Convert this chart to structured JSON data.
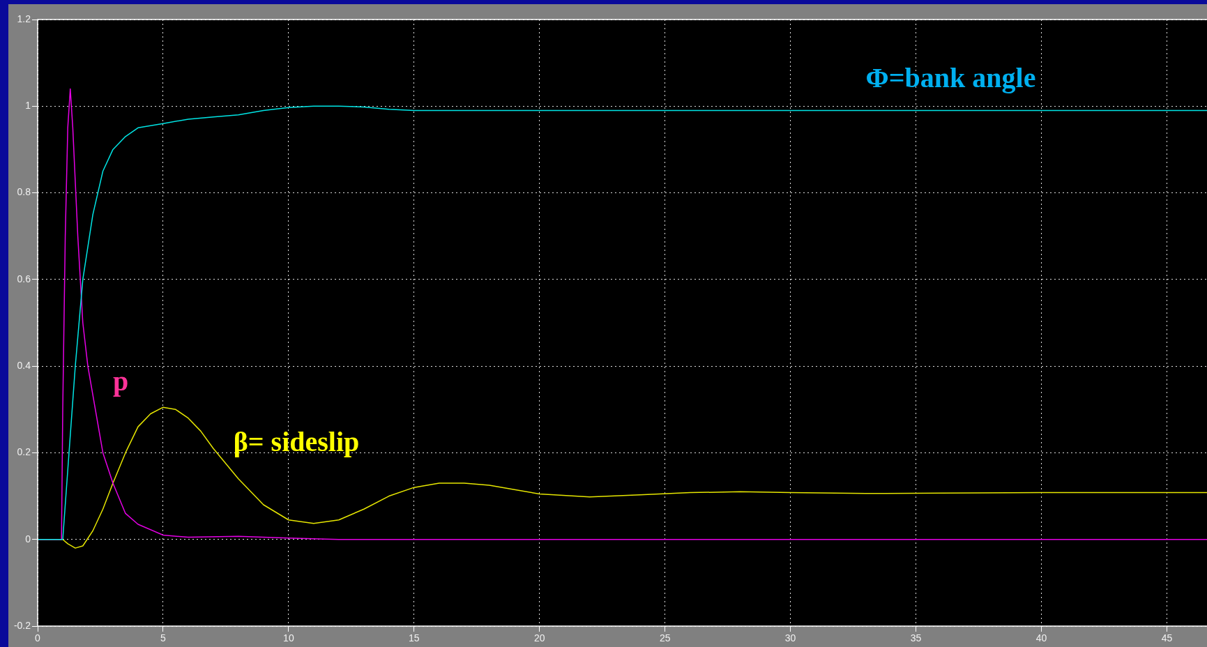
{
  "chart_data": {
    "type": "line",
    "xlim": [
      0,
      46.6
    ],
    "ylim": [
      -0.2,
      1.2
    ],
    "xticks": [
      0,
      5,
      10,
      15,
      20,
      25,
      30,
      35,
      40,
      45
    ],
    "yticks": [
      -0.2,
      0,
      0.2,
      0.4,
      0.6,
      0.8,
      1,
      1.2
    ],
    "grid": true,
    "legend": false,
    "marker": "none",
    "line_style": "solid",
    "series": [
      {
        "name": "Φ=bank angle",
        "color": "#00e5e5",
        "x": [
          0,
          1,
          1.5,
          1.8,
          2.2,
          2.6,
          3,
          3.5,
          4,
          5,
          6,
          7,
          8,
          9,
          10,
          11,
          12,
          13,
          14,
          15,
          20,
          46.6
        ],
        "values": [
          0,
          0,
          0.4,
          0.6,
          0.75,
          0.85,
          0.9,
          0.93,
          0.95,
          0.96,
          0.97,
          0.975,
          0.98,
          0.99,
          0.997,
          1,
          1,
          0.998,
          0.993,
          0.99,
          0.99,
          0.99
        ]
      },
      {
        "name": "p",
        "color": "#e600e6",
        "x": [
          0,
          0.95,
          1,
          1.1,
          1.2,
          1.3,
          1.4,
          1.6,
          1.8,
          2,
          2.3,
          2.6,
          3,
          3.5,
          4,
          5,
          6,
          8,
          10,
          12,
          46.6
        ],
        "values": [
          0,
          0,
          0.3,
          0.7,
          0.95,
          1.04,
          0.95,
          0.7,
          0.5,
          0.4,
          0.3,
          0.2,
          0.13,
          0.06,
          0.035,
          0.01,
          0.005,
          0.007,
          0.003,
          0,
          0
        ]
      },
      {
        "name": "β= sideslip",
        "color": "#e6e600",
        "x": [
          0,
          1,
          1.2,
          1.5,
          1.8,
          2.2,
          2.6,
          3,
          3.5,
          4,
          4.5,
          5,
          5.5,
          6,
          6.5,
          7,
          8,
          9,
          10,
          11,
          12,
          13,
          14,
          15,
          16,
          17,
          18,
          19,
          20,
          22,
          24,
          26,
          28,
          30,
          33,
          36,
          40,
          46.6
        ],
        "values": [
          0,
          0,
          -0.01,
          -0.02,
          -0.015,
          0.02,
          0.07,
          0.13,
          0.2,
          0.26,
          0.29,
          0.305,
          0.3,
          0.28,
          0.25,
          0.21,
          0.14,
          0.08,
          0.045,
          0.037,
          0.045,
          0.07,
          0.1,
          0.12,
          0.13,
          0.13,
          0.125,
          0.115,
          0.105,
          0.098,
          0.103,
          0.108,
          0.11,
          0.108,
          0.106,
          0.107,
          0.108,
          0.108
        ]
      }
    ]
  }
}
